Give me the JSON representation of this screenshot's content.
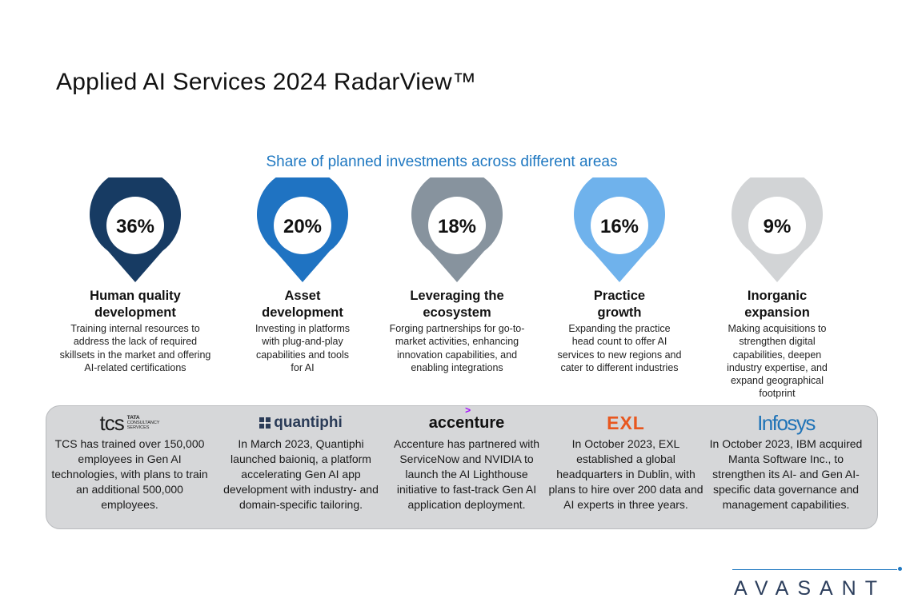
{
  "title": "Applied AI Services 2024 RadarView™",
  "chart_data": {
    "type": "pie",
    "title": "Share of planned investments across different areas",
    "unit": "%",
    "categories": [
      "Human quality development",
      "Asset development",
      "Leveraging the ecosystem",
      "Practice growth",
      "Inorganic expansion"
    ],
    "values": [
      36,
      20,
      18,
      16,
      9
    ],
    "labels": [
      "36%",
      "20%",
      "18%",
      "16%",
      "9%"
    ],
    "colors": [
      "#173b63",
      "#1f73c2",
      "#87939e",
      "#6fb2ec",
      "#d2d4d6"
    ]
  },
  "areas": [
    {
      "label": "36%",
      "heading_1": "Human quality",
      "heading_2": "development",
      "description": "Training internal resources to address the lack of required skillsets in the market and offering AI-related certifications"
    },
    {
      "label": "20%",
      "heading_1": "Asset",
      "heading_2": "development",
      "description": "Investing in platforms with plug-and-play capabilities and tools for AI"
    },
    {
      "label": "18%",
      "heading_1": "Leveraging the",
      "heading_2": "ecosystem",
      "description": "Forging partnerships for go-to-market activities, enhancing innovation capabilities, and enabling integrations"
    },
    {
      "label": "16%",
      "heading_1": "Practice",
      "heading_2": "growth",
      "description": "Expanding the practice head count to offer AI services to new regions and cater to different industries"
    },
    {
      "label": "9%",
      "heading_1": "Inorganic",
      "heading_2": "expansion",
      "description": "Making acquisitions to strengthen digital capabilities, deepen industry expertise, and expand geographical footprint"
    }
  ],
  "providers": [
    {
      "logo_main": "tcs",
      "logo_sub_1": "TATA",
      "logo_sub_2": "CONSULTANCY",
      "logo_sub_3": "SERVICES",
      "text": "TCS has trained over 150,000 employees in Gen AI technologies, with plans to train an additional 500,000 employees."
    },
    {
      "logo": "quantiphi",
      "text": "In March 2023, Quantiphi launched baioniq, a platform accelerating Gen AI app development with industry- and domain-specific tailoring."
    },
    {
      "logo": "accenture",
      "logo_mark": ">",
      "text": "Accenture has partnered with ServiceNow and NVIDIA to launch the AI Lighthouse initiative to fast-track Gen AI application deployment."
    },
    {
      "logo": "EXL",
      "text": "In October 2023, EXL established a global headquarters in Dublin, with plans to hire over 200 data and AI experts in three years."
    },
    {
      "logo": "Infosys",
      "text": "In October 2023, IBM acquired Manta Software Inc., to strengthen its AI- and Gen AI-specific data governance and management capabilities."
    }
  ],
  "brand": {
    "name": "AVASANT"
  }
}
